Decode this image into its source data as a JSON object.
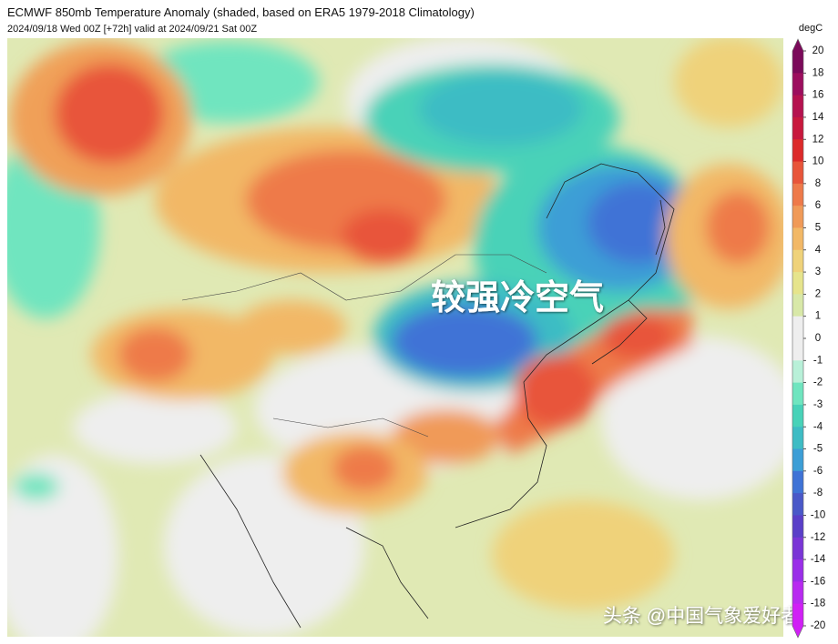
{
  "header": {
    "title": "ECMWF 850mb Temperature Anomaly (shaded, based on ERA5 1979-2018 Climatology)",
    "subtitle": "2024/09/18 Wed 00Z [+72h] valid at 2024/09/21 Sat 00Z"
  },
  "map": {
    "annotation": "较强冷空气",
    "watermark": "头条 @中国气象爱好者"
  },
  "colorbar": {
    "label": "degC",
    "ticks": [
      20,
      18,
      16,
      14,
      12,
      10,
      8,
      6,
      5,
      4,
      3,
      2,
      1,
      0,
      -1,
      -2,
      -3,
      -4,
      -5,
      -6,
      -8,
      -10,
      -12,
      -14,
      -16,
      -18,
      -20
    ],
    "colors": [
      "#7b0a5a",
      "#9c0e5e",
      "#b5124f",
      "#c8183d",
      "#dc2a2a",
      "#e8553a",
      "#ee7a4a",
      "#f09a58",
      "#f2b866",
      "#efd27a",
      "#e6e48c",
      "#d8e8a8",
      "#eeeeee",
      "#eeeeee",
      "#b8f0d8",
      "#6fe5bf",
      "#48d2b8",
      "#3ebcc4",
      "#3c9ed6",
      "#3f73d6",
      "#4a58c8",
      "#5a3fc8",
      "#7a35d6",
      "#9a2ee8",
      "#b82af0",
      "#d020f5"
    ]
  }
}
